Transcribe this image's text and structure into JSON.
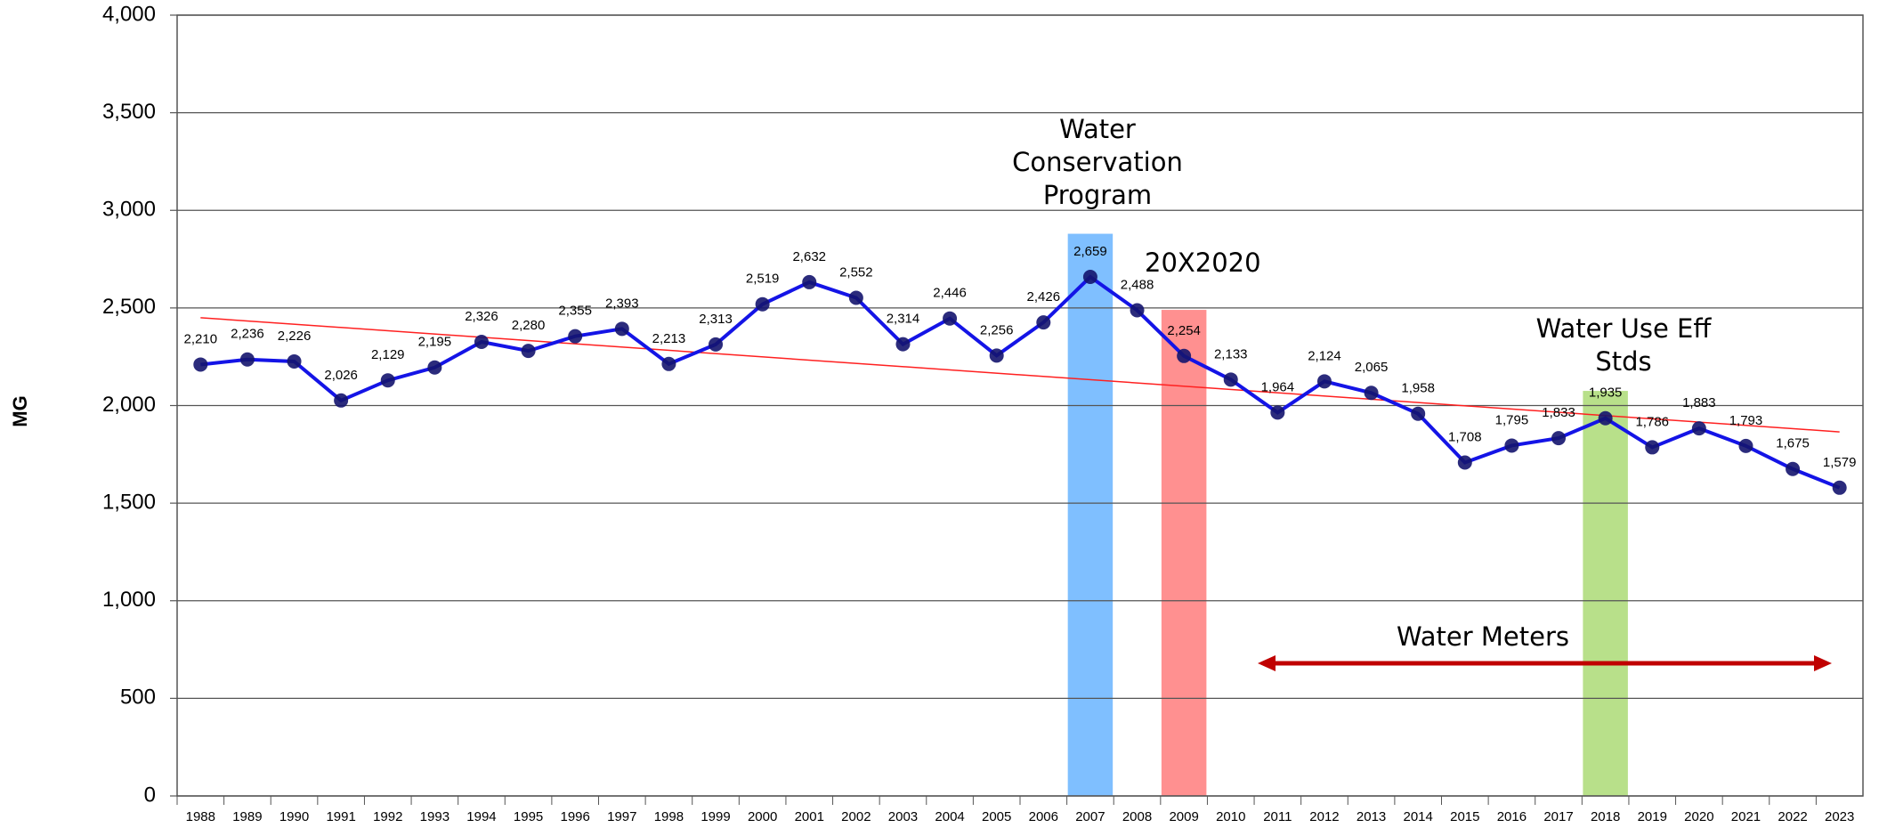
{
  "chart_data": {
    "type": "line",
    "y_label": "MG",
    "categories": [
      "1988",
      "1989",
      "1990",
      "1991",
      "1992",
      "1993",
      "1994",
      "1995",
      "1996",
      "1997",
      "1998",
      "1999",
      "2000",
      "2001",
      "2002",
      "2003",
      "2004",
      "2005",
      "2006",
      "2007",
      "2008",
      "2009",
      "2010",
      "2011",
      "2012",
      "2013",
      "2014",
      "2015",
      "2016",
      "2017",
      "2018",
      "2019",
      "2020",
      "2021",
      "2022",
      "2023"
    ],
    "series": [
      {
        "color": "#1414e6",
        "marker_color": "#14146e",
        "values": [
          2210,
          2236,
          2226,
          2026,
          2129,
          2195,
          2326,
          2280,
          2355,
          2393,
          2213,
          2313,
          2519,
          2632,
          2552,
          2314,
          2446,
          2256,
          2426,
          2659,
          2488,
          2254,
          2133,
          1964,
          2124,
          2065,
          1958,
          1708,
          1795,
          1833,
          1935,
          1786,
          1883,
          1793,
          1675,
          1579
        ],
        "value_labels": [
          "2,210",
          "2,236",
          "2,226",
          "2,026",
          "2,129",
          "2,195",
          "2,326",
          "2,280",
          "2,355",
          "2,393",
          "2,213",
          "2,313",
          "2,519",
          "2,632",
          "2,552",
          "2,314",
          "2,446",
          "2,256",
          "2,426",
          "2,659",
          "2,488",
          "2,254",
          "2,133",
          "1,964",
          "2,124",
          "2,065",
          "1,958",
          "1,708",
          "1,795",
          "1,833",
          "1,935",
          "1,786",
          "1,883",
          "1,793",
          "1,675",
          "1,579"
        ]
      }
    ],
    "trendline": {
      "values": [
        2450,
        1865
      ],
      "color": "#ff2020"
    },
    "highlights": [
      {
        "category": "2007",
        "value": 2880,
        "color": "#7fbfff"
      },
      {
        "category": "2009",
        "value": 2490,
        "color": "#ff9090"
      },
      {
        "category": "2018",
        "value": 2075,
        "color": "#b8e08a"
      }
    ],
    "annotations": [
      {
        "lines": [
          "Water",
          "Conservation",
          "Program"
        ]
      },
      {
        "lines": [
          "20X2020"
        ]
      },
      {
        "lines": [
          "Water Use Eff",
          "Stds"
        ]
      },
      {
        "lines": [
          "Water Meters"
        ]
      }
    ],
    "ylim": [
      0,
      4000
    ],
    "yticks": [
      {
        "value": 0,
        "label": "0"
      },
      {
        "value": 500,
        "label": "500"
      },
      {
        "value": 1000,
        "label": "1,000"
      },
      {
        "value": 1500,
        "label": "1,500"
      },
      {
        "value": 2000,
        "label": "2,000"
      },
      {
        "value": 2500,
        "label": "2,500"
      },
      {
        "value": 3000,
        "label": "3,000"
      },
      {
        "value": 3500,
        "label": "3,500"
      },
      {
        "value": 4000,
        "label": "4,000"
      }
    ],
    "grid": true
  }
}
